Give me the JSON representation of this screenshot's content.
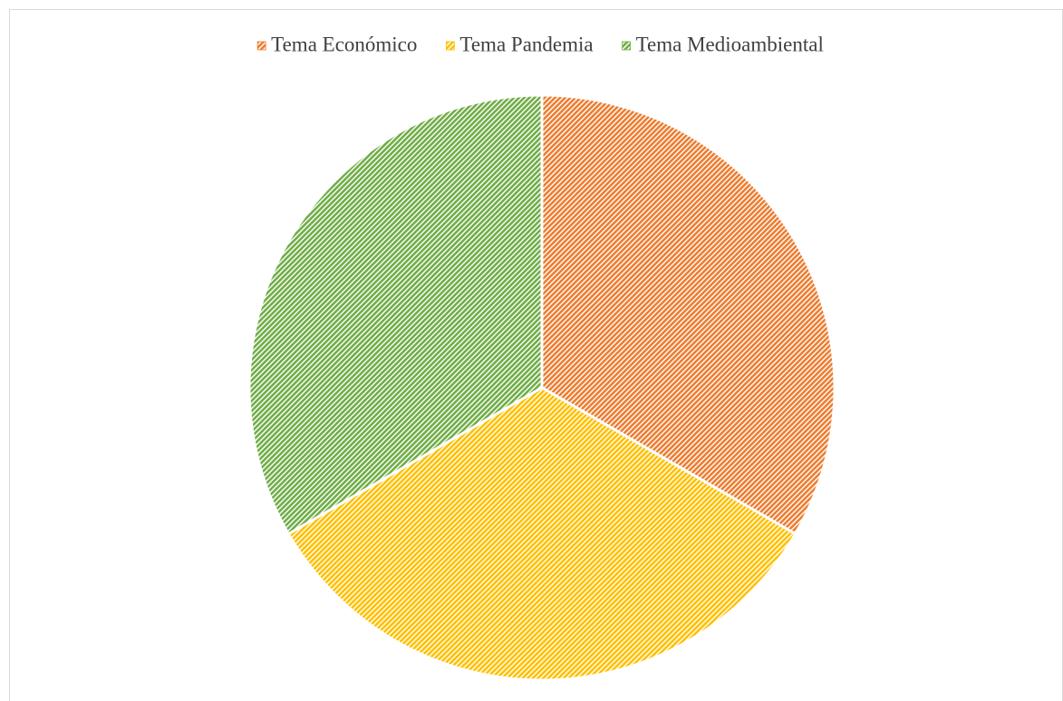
{
  "chart_data": {
    "type": "pie",
    "categories": [
      "Tema Económico",
      "Tema Pandemia",
      "Tema Medioambiental"
    ],
    "values": [
      33.3,
      33.3,
      33.3
    ],
    "colors": [
      "#ed7d31",
      "#ffc000",
      "#70ad47"
    ],
    "legend": "top"
  }
}
